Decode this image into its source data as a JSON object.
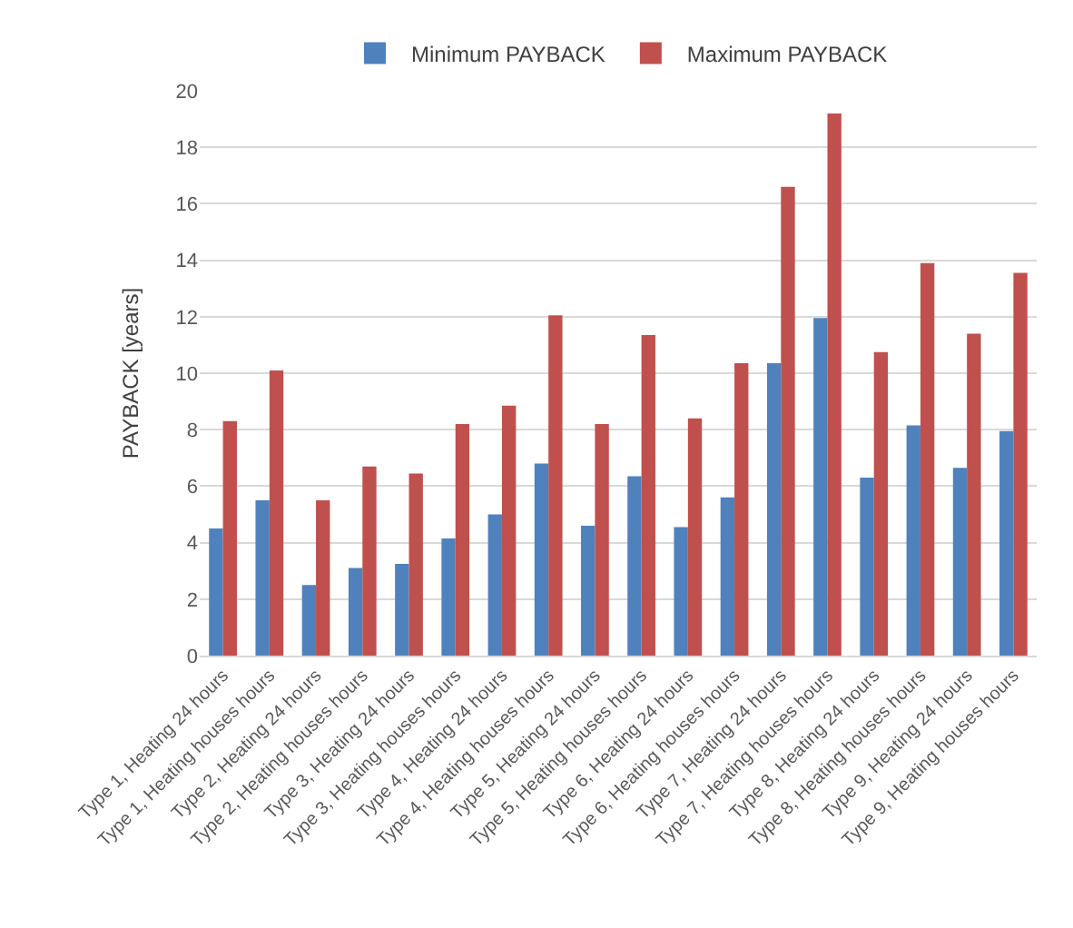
{
  "chart_data": {
    "type": "bar",
    "ylabel": "PAYBACK [years]",
    "categories": [
      "Type 1, Heating 24 hours",
      "Type 1, Heating houses hours",
      "Type 2, Heating 24 hours",
      "Type 2, Heating houses hours",
      "Type 3, Heating 24 hours",
      "Type 3, Heating houses hours",
      "Type 4, Heating 24 hours",
      "Type 4, Heating houses hours",
      "Type 5, Heating 24 hours",
      "Type 5, Heating houses hours",
      "Type 6, Heating 24 hours",
      "Type 6, Heating houses hours",
      "Type 7, Heating 24 hours",
      "Type 7, Heating houses hours",
      "Type 8, Heating 24 hours",
      "Type 8, Heating houses hours",
      "Type 9, Heating 24 hours",
      "Type 9, Heating houses hours"
    ],
    "series": [
      {
        "name": "Minimum PAYBACK",
        "color": "#4f81bd",
        "values": [
          4.5,
          5.5,
          2.5,
          3.1,
          3.25,
          4.15,
          5.0,
          6.8,
          4.6,
          6.35,
          4.55,
          5.6,
          10.35,
          11.95,
          6.3,
          8.15,
          6.65,
          7.95
        ]
      },
      {
        "name": "Maximum PAYBACK",
        "color": "#c0504d",
        "values": [
          8.3,
          10.1,
          5.5,
          6.7,
          6.45,
          8.2,
          8.85,
          12.05,
          8.2,
          11.35,
          8.4,
          10.35,
          16.6,
          19.2,
          10.75,
          13.9,
          11.4,
          13.55
        ]
      }
    ],
    "ylim": [
      0,
      20
    ],
    "yticks": [
      0,
      2,
      4,
      6,
      8,
      10,
      12,
      14,
      16,
      18,
      20
    ],
    "grid": "y",
    "legend": "top"
  }
}
